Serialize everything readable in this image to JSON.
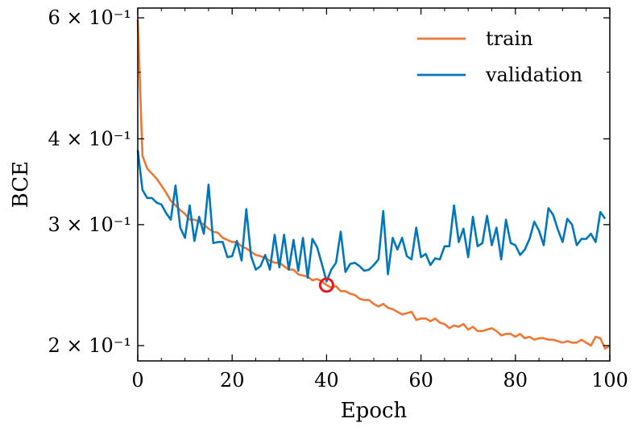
{
  "chart_data": {
    "type": "line",
    "xlabel": "Epoch",
    "ylabel": "BCE",
    "xlim": [
      0,
      100
    ],
    "ylim": [
      0.19,
      0.62
    ],
    "yscale": "log",
    "grid": false,
    "legend_position": "top-right",
    "x_ticks": [
      {
        "value": 0,
        "label": "0"
      },
      {
        "value": 20,
        "label": "20"
      },
      {
        "value": 40,
        "label": "40"
      },
      {
        "value": 60,
        "label": "60"
      },
      {
        "value": 80,
        "label": "80"
      },
      {
        "value": 100,
        "label": "100"
      }
    ],
    "y_ticks": [
      {
        "value": 0.2,
        "label": "2 × 10⁻¹"
      },
      {
        "value": 0.3,
        "label": "3 × 10⁻¹"
      },
      {
        "value": 0.4,
        "label": "4 × 10⁻¹"
      },
      {
        "value": 0.6,
        "label": "6 × 10⁻¹"
      }
    ],
    "marker": {
      "x": 40,
      "y": 0.245,
      "color": "#e8191e"
    },
    "series": [
      {
        "name": "train",
        "color": "#ee7733",
        "values": [
          0.596,
          0.378,
          0.362,
          0.356,
          0.35,
          0.342,
          0.334,
          0.325,
          0.32,
          0.315,
          0.311,
          0.305,
          0.305,
          0.303,
          0.3,
          0.296,
          0.293,
          0.292,
          0.287,
          0.285,
          0.283,
          0.283,
          0.279,
          0.277,
          0.274,
          0.271,
          0.27,
          0.268,
          0.266,
          0.264,
          0.264,
          0.261,
          0.258,
          0.258,
          0.254,
          0.253,
          0.252,
          0.249,
          0.25,
          0.248,
          0.245,
          0.243,
          0.244,
          0.24,
          0.24,
          0.238,
          0.237,
          0.234,
          0.233,
          0.233,
          0.23,
          0.228,
          0.23,
          0.227,
          0.226,
          0.224,
          0.222,
          0.223,
          0.224,
          0.218,
          0.219,
          0.219,
          0.217,
          0.219,
          0.216,
          0.215,
          0.212,
          0.214,
          0.213,
          0.215,
          0.211,
          0.213,
          0.21,
          0.21,
          0.211,
          0.212,
          0.21,
          0.207,
          0.208,
          0.208,
          0.206,
          0.208,
          0.205,
          0.206,
          0.204,
          0.205,
          0.205,
          0.204,
          0.204,
          0.203,
          0.202,
          0.203,
          0.202,
          0.202,
          0.204,
          0.202,
          0.2,
          0.206,
          0.205,
          0.198,
          0.2
        ]
      },
      {
        "name": "validation",
        "color": "#0077bb",
        "values": [
          0.385,
          0.337,
          0.328,
          0.328,
          0.323,
          0.321,
          0.312,
          0.305,
          0.342,
          0.297,
          0.287,
          0.32,
          0.284,
          0.308,
          0.291,
          0.343,
          0.282,
          0.283,
          0.283,
          0.269,
          0.27,
          0.284,
          0.266,
          0.316,
          0.27,
          0.258,
          0.261,
          0.271,
          0.258,
          0.29,
          0.26,
          0.29,
          0.258,
          0.285,
          0.257,
          0.287,
          0.251,
          0.286,
          0.278,
          0.263,
          0.248,
          0.258,
          0.264,
          0.293,
          0.256,
          0.263,
          0.264,
          0.261,
          0.257,
          0.258,
          0.262,
          0.267,
          0.314,
          0.254,
          0.287,
          0.276,
          0.287,
          0.27,
          0.267,
          0.297,
          0.269,
          0.272,
          0.262,
          0.268,
          0.267,
          0.279,
          0.279,
          0.32,
          0.283,
          0.296,
          0.269,
          0.308,
          0.279,
          0.282,
          0.309,
          0.28,
          0.297,
          0.267,
          0.305,
          0.282,
          0.28,
          0.271,
          0.276,
          0.286,
          0.303,
          0.294,
          0.28,
          0.317,
          0.31,
          0.295,
          0.283,
          0.306,
          0.3,
          0.28,
          0.286,
          0.286,
          0.291,
          0.283,
          0.313,
          0.306
        ]
      }
    ]
  }
}
